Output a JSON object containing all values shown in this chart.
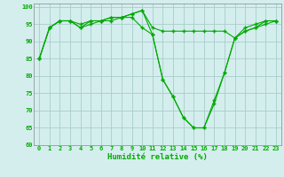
{
  "xlabel": "Humidité relative (%)",
  "ylabel": "",
  "background_color": "#d4eeee",
  "grid_color": "#aacccc",
  "line_color": "#00aa00",
  "xlim": [
    -0.5,
    23.5
  ],
  "ylim": [
    60,
    101
  ],
  "yticks": [
    60,
    65,
    70,
    75,
    80,
    85,
    90,
    95,
    100
  ],
  "xticks": [
    0,
    1,
    2,
    3,
    4,
    5,
    6,
    7,
    8,
    9,
    10,
    11,
    12,
    13,
    14,
    15,
    16,
    17,
    18,
    19,
    20,
    21,
    22,
    23
  ],
  "series": {
    "top": [
      85,
      94,
      96,
      96,
      95,
      96,
      96,
      97,
      97,
      98,
      99,
      94,
      93,
      93,
      93,
      93,
      93,
      93,
      93,
      91,
      93,
      94,
      96,
      96
    ],
    "mid": [
      85,
      94,
      96,
      96,
      94,
      96,
      96,
      97,
      97,
      98,
      99,
      92,
      79,
      74,
      68,
      65,
      65,
      72,
      81,
      91,
      94,
      95,
      96,
      96
    ],
    "bot": [
      85,
      94,
      96,
      96,
      94,
      95,
      96,
      96,
      97,
      97,
      94,
      92,
      79,
      74,
      68,
      65,
      65,
      73,
      81,
      91,
      93,
      94,
      95,
      96
    ]
  }
}
